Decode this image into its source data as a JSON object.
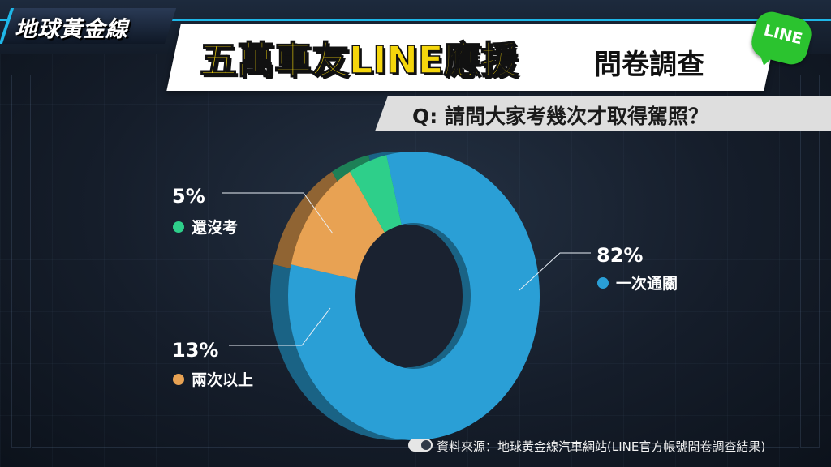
{
  "header": {
    "logo_text": "地球黃金線",
    "title": "五萬車友LINE應援",
    "title_suffix": "問卷調查",
    "line_badge": "LINE",
    "question": "Q: 請問大家考幾次才取得駕照？"
  },
  "chart_data": {
    "type": "pie",
    "style": "donut",
    "categories": [
      "一次通關",
      "兩次以上",
      "還沒考"
    ],
    "values": [
      82,
      13,
      5
    ],
    "value_labels": [
      "82%",
      "13%",
      "5%"
    ],
    "colors": [
      "#2a9fd6",
      "#e8a253",
      "#2ecf8a"
    ]
  },
  "footer": {
    "source": "資料來源：地球黃金線汽車網站(LINE官方帳號問卷調查結果)"
  }
}
